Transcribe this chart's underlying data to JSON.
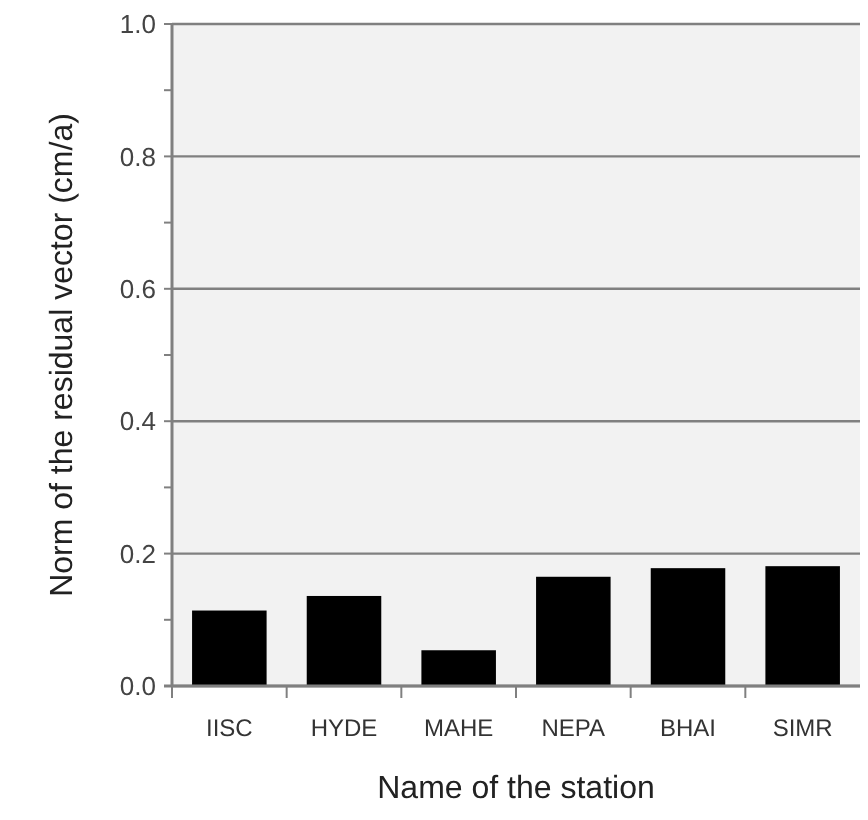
{
  "chart_data": {
    "type": "bar",
    "xlabel": "Name of the station",
    "ylabel": "Norm of the residual vector (cm/a)",
    "categories": [
      "IISC",
      "HYDE",
      "MAHE",
      "NEPA",
      "BHAI",
      "SIMR"
    ],
    "values": [
      0.114,
      0.136,
      0.054,
      0.165,
      0.178,
      0.181
    ],
    "color": "#000000",
    "ylim": [
      0,
      1.0
    ],
    "yticks": [
      {
        "value": 0,
        "label": "0.0"
      },
      {
        "value": 0.1,
        "label": null
      },
      0.2,
      {
        "value": 0.3,
        "label": null
      },
      0.4,
      {
        "value": 0.5,
        "label": null
      },
      0.6,
      {
        "value": 0.7,
        "label": null
      },
      0.8,
      {
        "value": 0.9,
        "label": null
      },
      {
        "value": 1.0,
        "label": "1.0"
      }
    ],
    "grid": "y"
  }
}
